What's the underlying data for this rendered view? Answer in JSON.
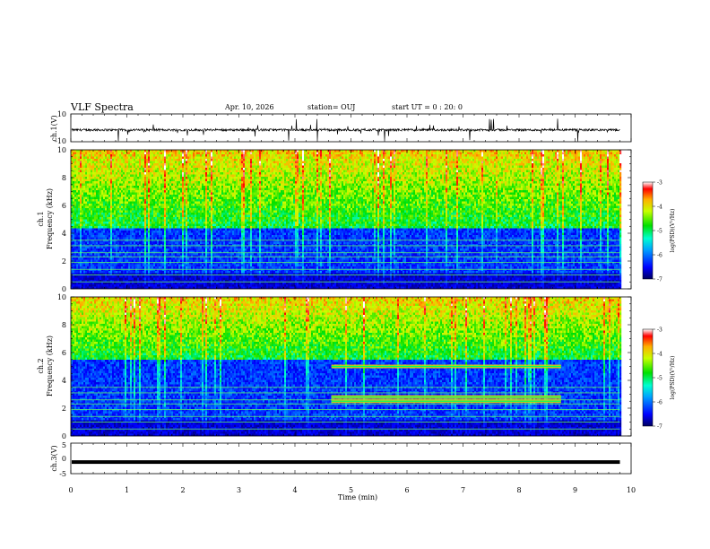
{
  "header": {
    "title": "VLF Spectra",
    "date": "Apr. 10, 2026",
    "station": "station= OUJ",
    "start": "start UT =  0 : 20: 0"
  },
  "chart_data": [
    {
      "type": "line",
      "name": "ch1-waveform",
      "ylabel": "ch.1(V)",
      "ylim": [
        -10,
        10
      ],
      "ytick_labels": [
        "10",
        "-10"
      ],
      "baseline": -1.5,
      "xlim": [
        0,
        10
      ]
    },
    {
      "type": "heatmap",
      "name": "ch1-spectrogram",
      "ylabel": "ch.1\nFrequency (kHz)",
      "ylabel_lines": [
        "ch.1",
        "Frequency (kHz)"
      ],
      "ylim": [
        0,
        10
      ],
      "ytick_labels": [
        "0",
        "2",
        "4",
        "6",
        "8",
        "10"
      ],
      "xlim": [
        0,
        10
      ],
      "data_end_min": 9.8,
      "colorbar": {
        "label": "log(PSD)(V²/Hz)",
        "range": [
          -7,
          -3
        ],
        "ticks": [
          "-3",
          "-4",
          "-5",
          "-6",
          "-7"
        ]
      },
      "features": {
        "low_noise_cutoff_khz": 4.5,
        "horizontal_lines_khz": [
          0.5,
          1.0,
          1.4,
          1.9,
          2.3,
          2.6,
          3.1,
          3.5
        ]
      }
    },
    {
      "type": "heatmap",
      "name": "ch2-spectrogram",
      "ylabel": "ch.2\nFrequency (kHz)",
      "ylabel_lines": [
        "ch.2",
        "Frequency (kHz)"
      ],
      "ylim": [
        0,
        10
      ],
      "ytick_labels": [
        "0",
        "2",
        "4",
        "6",
        "8",
        "10"
      ],
      "xlim": [
        0,
        10
      ],
      "data_end_min": 9.8,
      "colorbar": {
        "label": "log(PSD)(V²/Hz)",
        "range": [
          -7,
          -3
        ],
        "ticks": [
          "-3",
          "-4",
          "-5",
          "-6",
          "-7"
        ]
      },
      "features": {
        "low_noise_cutoff_khz": 5.5,
        "tone_bands": [
          {
            "khz": 5.0,
            "start_min": 4.65,
            "end_min": 8.75
          },
          {
            "khz": 2.5,
            "start_min": 4.65,
            "end_min": 8.75
          },
          {
            "khz": 2.8,
            "start_min": 4.65,
            "end_min": 8.75
          }
        ]
      }
    },
    {
      "type": "line",
      "name": "ch3-waveform",
      "ylabel": "ch.3(V)",
      "ylim": [
        -5,
        5
      ],
      "ytick_labels": [
        "5",
        "0",
        "-5"
      ],
      "constant_value": -1.2,
      "xlim": [
        0,
        10
      ]
    }
  ],
  "xaxis": {
    "label": "Time  (min)",
    "range": [
      0,
      10
    ],
    "ticks": [
      "0",
      "1",
      "2",
      "3",
      "4",
      "5",
      "6",
      "7",
      "8",
      "9",
      "10"
    ]
  }
}
